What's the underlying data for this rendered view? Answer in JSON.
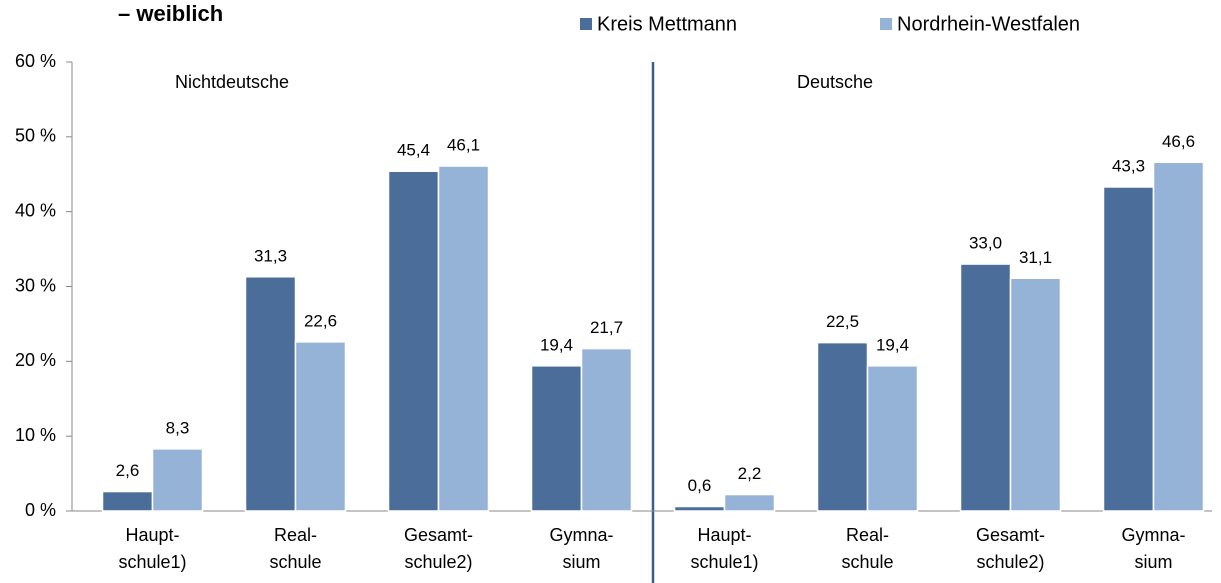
{
  "chart_data": {
    "type": "bar",
    "title": "– weiblich",
    "annotations": [
      "Nichtdeutsche",
      "Deutsche"
    ],
    "categories": [
      "Haupt-\nschule1)",
      "Real-\nschule",
      "Gesamt-\nschule2)",
      "Gymna-\nsium",
      "Haupt-\nschule1)",
      "Real-\nschule",
      "Gesamt-\nschule2)",
      "Gymna-\nsium"
    ],
    "series": [
      {
        "name": "Kreis Mettmann",
        "color": "#4a6d9a",
        "values": [
          2.6,
          31.3,
          45.4,
          19.4,
          0.6,
          22.5,
          33.0,
          43.3
        ],
        "value_labels": [
          "2,6",
          "31,3",
          "45,4",
          "19,4",
          "0,6",
          "22,5",
          "33,0",
          "43,3"
        ]
      },
      {
        "name": "Nordrhein-Westfalen",
        "color": "#95b3d7",
        "values": [
          8.3,
          22.6,
          46.1,
          21.7,
          2.2,
          19.4,
          31.1,
          46.6
        ],
        "value_labels": [
          "8,3",
          "22,6",
          "46,1",
          "21,7",
          "2,2",
          "19,4",
          "31,1",
          "46,6"
        ]
      }
    ],
    "ylim": [
      0,
      60
    ],
    "yticks": [
      {
        "value": 0,
        "label": "0 %"
      },
      {
        "value": 10,
        "label": "10 %"
      },
      {
        "value": 20,
        "label": "20 %"
      },
      {
        "value": 30,
        "label": "30 %"
      },
      {
        "value": 40,
        "label": "40 %"
      },
      {
        "value": 50,
        "label": "50 %"
      },
      {
        "value": 60,
        "label": "60 %"
      }
    ],
    "legend": "top"
  }
}
